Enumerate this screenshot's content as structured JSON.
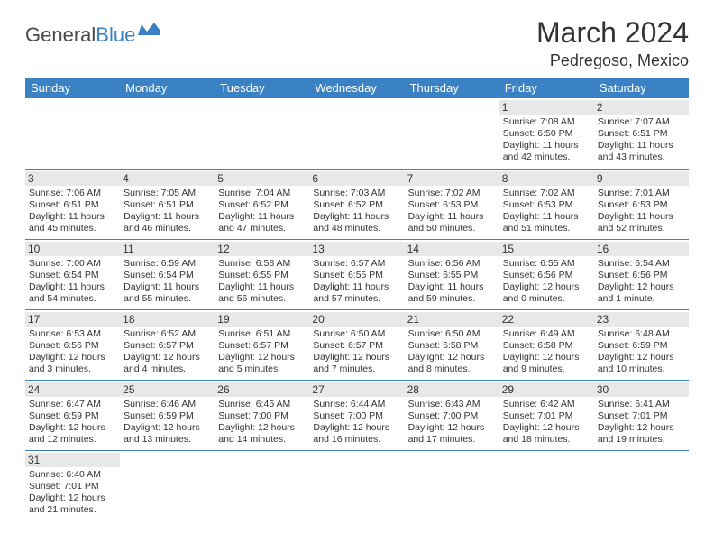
{
  "logo": {
    "part1": "General",
    "part2": "Blue"
  },
  "title": "March 2024",
  "location": "Pedregoso, Mexico",
  "colors": {
    "header_bg": "#3b82c4",
    "header_text": "#ffffff",
    "daynum_bg": "#e8e8e8",
    "border": "#3b82c4",
    "logo_gray": "#4a4a4a",
    "logo_blue": "#3b7fc4"
  },
  "dow": [
    "Sunday",
    "Monday",
    "Tuesday",
    "Wednesday",
    "Thursday",
    "Friday",
    "Saturday"
  ],
  "weeks": [
    [
      null,
      null,
      null,
      null,
      null,
      {
        "n": "1",
        "sr": "7:08 AM",
        "ss": "6:50 PM",
        "dl": "11 hours and 42 minutes."
      },
      {
        "n": "2",
        "sr": "7:07 AM",
        "ss": "6:51 PM",
        "dl": "11 hours and 43 minutes."
      }
    ],
    [
      {
        "n": "3",
        "sr": "7:06 AM",
        "ss": "6:51 PM",
        "dl": "11 hours and 45 minutes."
      },
      {
        "n": "4",
        "sr": "7:05 AM",
        "ss": "6:51 PM",
        "dl": "11 hours and 46 minutes."
      },
      {
        "n": "5",
        "sr": "7:04 AM",
        "ss": "6:52 PM",
        "dl": "11 hours and 47 minutes."
      },
      {
        "n": "6",
        "sr": "7:03 AM",
        "ss": "6:52 PM",
        "dl": "11 hours and 48 minutes."
      },
      {
        "n": "7",
        "sr": "7:02 AM",
        "ss": "6:53 PM",
        "dl": "11 hours and 50 minutes."
      },
      {
        "n": "8",
        "sr": "7:02 AM",
        "ss": "6:53 PM",
        "dl": "11 hours and 51 minutes."
      },
      {
        "n": "9",
        "sr": "7:01 AM",
        "ss": "6:53 PM",
        "dl": "11 hours and 52 minutes."
      }
    ],
    [
      {
        "n": "10",
        "sr": "7:00 AM",
        "ss": "6:54 PM",
        "dl": "11 hours and 54 minutes."
      },
      {
        "n": "11",
        "sr": "6:59 AM",
        "ss": "6:54 PM",
        "dl": "11 hours and 55 minutes."
      },
      {
        "n": "12",
        "sr": "6:58 AM",
        "ss": "6:55 PM",
        "dl": "11 hours and 56 minutes."
      },
      {
        "n": "13",
        "sr": "6:57 AM",
        "ss": "6:55 PM",
        "dl": "11 hours and 57 minutes."
      },
      {
        "n": "14",
        "sr": "6:56 AM",
        "ss": "6:55 PM",
        "dl": "11 hours and 59 minutes."
      },
      {
        "n": "15",
        "sr": "6:55 AM",
        "ss": "6:56 PM",
        "dl": "12 hours and 0 minutes."
      },
      {
        "n": "16",
        "sr": "6:54 AM",
        "ss": "6:56 PM",
        "dl": "12 hours and 1 minute."
      }
    ],
    [
      {
        "n": "17",
        "sr": "6:53 AM",
        "ss": "6:56 PM",
        "dl": "12 hours and 3 minutes."
      },
      {
        "n": "18",
        "sr": "6:52 AM",
        "ss": "6:57 PM",
        "dl": "12 hours and 4 minutes."
      },
      {
        "n": "19",
        "sr": "6:51 AM",
        "ss": "6:57 PM",
        "dl": "12 hours and 5 minutes."
      },
      {
        "n": "20",
        "sr": "6:50 AM",
        "ss": "6:57 PM",
        "dl": "12 hours and 7 minutes."
      },
      {
        "n": "21",
        "sr": "6:50 AM",
        "ss": "6:58 PM",
        "dl": "12 hours and 8 minutes."
      },
      {
        "n": "22",
        "sr": "6:49 AM",
        "ss": "6:58 PM",
        "dl": "12 hours and 9 minutes."
      },
      {
        "n": "23",
        "sr": "6:48 AM",
        "ss": "6:59 PM",
        "dl": "12 hours and 10 minutes."
      }
    ],
    [
      {
        "n": "24",
        "sr": "6:47 AM",
        "ss": "6:59 PM",
        "dl": "12 hours and 12 minutes."
      },
      {
        "n": "25",
        "sr": "6:46 AM",
        "ss": "6:59 PM",
        "dl": "12 hours and 13 minutes."
      },
      {
        "n": "26",
        "sr": "6:45 AM",
        "ss": "7:00 PM",
        "dl": "12 hours and 14 minutes."
      },
      {
        "n": "27",
        "sr": "6:44 AM",
        "ss": "7:00 PM",
        "dl": "12 hours and 16 minutes."
      },
      {
        "n": "28",
        "sr": "6:43 AM",
        "ss": "7:00 PM",
        "dl": "12 hours and 17 minutes."
      },
      {
        "n": "29",
        "sr": "6:42 AM",
        "ss": "7:01 PM",
        "dl": "12 hours and 18 minutes."
      },
      {
        "n": "30",
        "sr": "6:41 AM",
        "ss": "7:01 PM",
        "dl": "12 hours and 19 minutes."
      }
    ],
    [
      {
        "n": "31",
        "sr": "6:40 AM",
        "ss": "7:01 PM",
        "dl": "12 hours and 21 minutes."
      },
      null,
      null,
      null,
      null,
      null,
      null
    ]
  ],
  "labels": {
    "sunrise": "Sunrise: ",
    "sunset": "Sunset: ",
    "daylight": "Daylight: "
  }
}
